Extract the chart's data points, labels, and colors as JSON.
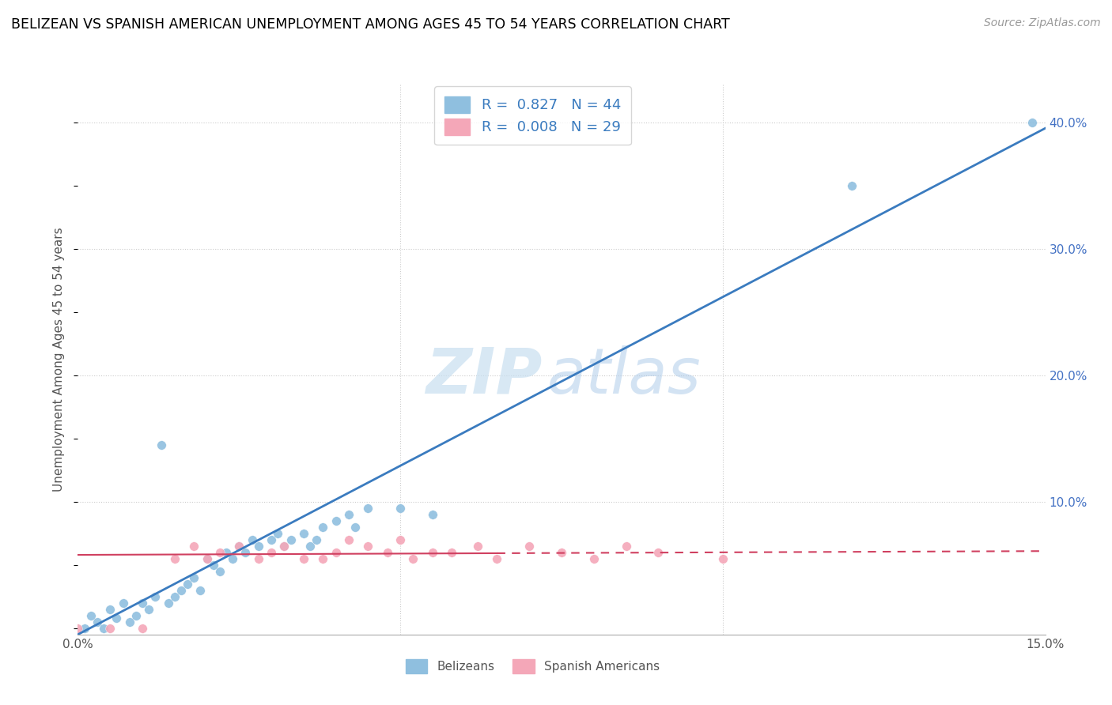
{
  "title": "BELIZEAN VS SPANISH AMERICAN UNEMPLOYMENT AMONG AGES 45 TO 54 YEARS CORRELATION CHART",
  "source": "Source: ZipAtlas.com",
  "ylabel": "Unemployment Among Ages 45 to 54 years",
  "xlim": [
    0.0,
    0.15
  ],
  "ylim": [
    -0.005,
    0.43
  ],
  "belizean_R": 0.827,
  "belizean_N": 44,
  "spanish_R": 0.008,
  "spanish_N": 29,
  "blue_color": "#8fbfdf",
  "pink_color": "#f4a7b8",
  "blue_line_color": "#3a7bbf",
  "pink_line_color": "#d04060",
  "blue_line_slope": 2.67,
  "blue_line_intercept": -0.005,
  "pink_line_slope": 0.02,
  "pink_line_intercept": 0.058,
  "belizean_x": [
    0.001,
    0.002,
    0.003,
    0.004,
    0.005,
    0.006,
    0.007,
    0.008,
    0.009,
    0.01,
    0.011,
    0.012,
    0.013,
    0.014,
    0.015,
    0.016,
    0.017,
    0.018,
    0.019,
    0.02,
    0.021,
    0.022,
    0.023,
    0.024,
    0.025,
    0.026,
    0.027,
    0.028,
    0.03,
    0.031,
    0.032,
    0.033,
    0.035,
    0.036,
    0.037,
    0.038,
    0.04,
    0.042,
    0.043,
    0.045,
    0.05,
    0.055,
    0.12,
    0.148
  ],
  "belizean_y": [
    0.0,
    0.01,
    0.005,
    0.0,
    0.015,
    0.008,
    0.02,
    0.005,
    0.01,
    0.02,
    0.015,
    0.025,
    0.145,
    0.02,
    0.025,
    0.03,
    0.035,
    0.04,
    0.03,
    0.055,
    0.05,
    0.045,
    0.06,
    0.055,
    0.065,
    0.06,
    0.07,
    0.065,
    0.07,
    0.075,
    0.065,
    0.07,
    0.075,
    0.065,
    0.07,
    0.08,
    0.085,
    0.09,
    0.08,
    0.095,
    0.095,
    0.09,
    0.35,
    0.4
  ],
  "spanish_x": [
    0.0,
    0.005,
    0.01,
    0.015,
    0.018,
    0.02,
    0.022,
    0.025,
    0.028,
    0.03,
    0.032,
    0.035,
    0.038,
    0.04,
    0.042,
    0.045,
    0.048,
    0.05,
    0.052,
    0.055,
    0.058,
    0.062,
    0.065,
    0.07,
    0.075,
    0.08,
    0.085,
    0.09,
    0.1
  ],
  "spanish_y": [
    0.0,
    0.0,
    0.0,
    0.055,
    0.065,
    0.055,
    0.06,
    0.065,
    0.055,
    0.06,
    0.065,
    0.055,
    0.055,
    0.06,
    0.07,
    0.065,
    0.06,
    0.07,
    0.055,
    0.06,
    0.06,
    0.065,
    0.055,
    0.065,
    0.06,
    0.055,
    0.065,
    0.06,
    0.055
  ]
}
